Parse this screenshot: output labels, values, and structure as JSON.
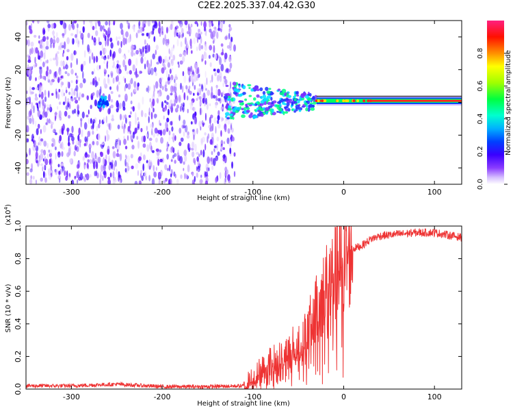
{
  "title": "C2E2.2025.337.04.42.G30",
  "chart_data": [
    {
      "type": "heatmap",
      "xlabel": "Height of straight line (km)",
      "ylabel": "Frequency (Hz)",
      "xlim": [
        -350,
        130
      ],
      "ylim": [
        -50,
        50
      ],
      "xticks": [
        -300,
        -200,
        -100,
        0,
        100
      ],
      "yticks": [
        -40,
        -20,
        0,
        20,
        40
      ],
      "colorbar": {
        "label": "Normalized spectral amplitude",
        "range": [
          0,
          1
        ],
        "ticks": [
          0.0,
          0.2,
          0.4,
          0.6,
          0.8
        ],
        "colormap": [
          "#ffffff",
          "#c9a8ff",
          "#7a2cff",
          "#3a00ff",
          "#0000ff",
          "#00a0ff",
          "#00ffff",
          "#00ff40",
          "#80ff00",
          "#ffff00",
          "#ff8000",
          "#ff0000",
          "#ff1080"
        ]
      },
      "regions": [
        {
          "x": [
            -350,
            -120
          ],
          "description_level": 0.22
        },
        {
          "x": [
            -130,
            -30
          ],
          "center_hz": 0,
          "amplitude": 0.45
        },
        {
          "x": [
            -30,
            130
          ],
          "center_hz": 1,
          "amplitude": 0.9
        }
      ]
    },
    {
      "type": "line",
      "xlabel": "Height of straight line (km)",
      "ylabel": "SNR (10 * v/v)",
      "multiplier_label": "(x10",
      "multiplier_exp": "4",
      "multiplier_close": ")",
      "xlim": [
        -350,
        130
      ],
      "ylim": [
        0,
        1.0
      ],
      "xticks": [
        -300,
        -200,
        -100,
        0,
        100
      ],
      "yticks": [
        "0.0",
        "0.2",
        "0.4",
        "0.6",
        "0.8",
        "1.0"
      ],
      "color": "#ee3333",
      "series": [
        {
          "x": [
            -350,
            -300,
            -250,
            -200,
            -150,
            -110,
            -100,
            -90,
            -80,
            -70,
            -60,
            -50,
            -40,
            -35,
            -30,
            -25,
            -20,
            -15,
            -10,
            -5,
            0,
            5,
            10,
            20,
            30,
            40,
            60,
            80,
            100,
            110,
            120,
            130
          ],
          "y": [
            0.02,
            0.02,
            0.03,
            0.015,
            0.015,
            0.02,
            0.06,
            0.12,
            0.16,
            0.18,
            0.22,
            0.28,
            0.32,
            0.42,
            0.48,
            0.55,
            0.62,
            0.66,
            0.7,
            0.74,
            0.76,
            0.8,
            0.86,
            0.88,
            0.92,
            0.94,
            0.95,
            0.96,
            0.96,
            0.95,
            0.94,
            0.93
          ]
        }
      ]
    }
  ]
}
